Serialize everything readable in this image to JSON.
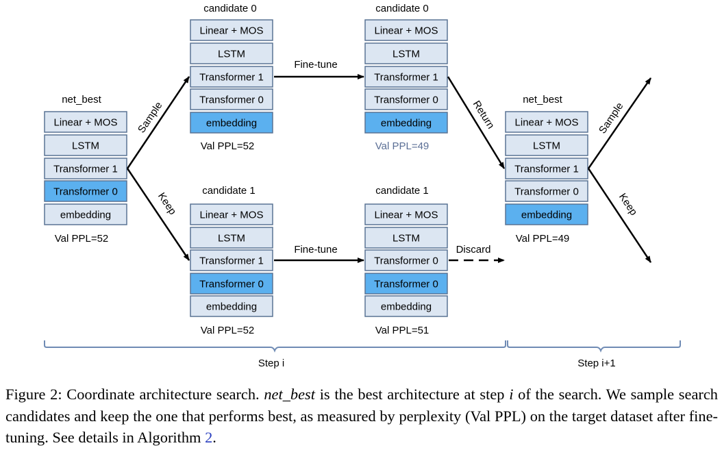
{
  "columns": [
    {
      "title": "net_best",
      "layers": [
        {
          "label": "Linear + MOS",
          "highlight": false
        },
        {
          "label": "LSTM",
          "highlight": false
        },
        {
          "label": "Transformer 1",
          "highlight": false
        },
        {
          "label": "Transformer 0",
          "highlight": true
        },
        {
          "label": "embedding",
          "highlight": false
        }
      ],
      "ppl": "Val PPL=52"
    },
    {
      "title": "candidate 0",
      "layers": [
        {
          "label": "Linear + MOS",
          "highlight": false
        },
        {
          "label": "LSTM",
          "highlight": false
        },
        {
          "label": "Transformer 1",
          "highlight": false
        },
        {
          "label": "Transformer 0",
          "highlight": false
        },
        {
          "label": "embedding",
          "highlight": true
        }
      ],
      "ppl": "Val PPL=52"
    },
    {
      "title": "candidate 1",
      "layers": [
        {
          "label": "Linear + MOS",
          "highlight": false
        },
        {
          "label": "LSTM",
          "highlight": false
        },
        {
          "label": "Transformer 1",
          "highlight": false
        },
        {
          "label": "Transformer 0",
          "highlight": true
        },
        {
          "label": "embedding",
          "highlight": false
        }
      ],
      "ppl": "Val PPL=52"
    },
    {
      "title": "candidate 0",
      "layers": [
        {
          "label": "Linear + MOS",
          "highlight": false
        },
        {
          "label": "LSTM",
          "highlight": false
        },
        {
          "label": "Transformer 1",
          "highlight": false
        },
        {
          "label": "Transformer 0",
          "highlight": false
        },
        {
          "label": "embedding",
          "highlight": true
        }
      ],
      "ppl": "Val PPL=49"
    },
    {
      "title": "candidate 1",
      "layers": [
        {
          "label": "Linear + MOS",
          "highlight": false
        },
        {
          "label": "LSTM",
          "highlight": false
        },
        {
          "label": "Transformer 0",
          "highlight": false
        },
        {
          "label": "Transformer 0",
          "highlight": true
        },
        {
          "label": "embedding",
          "highlight": false
        }
      ],
      "ppl": "Val PPL=51"
    },
    {
      "title": "net_best",
      "layers": [
        {
          "label": "Linear + MOS",
          "highlight": false
        },
        {
          "label": "LSTM",
          "highlight": false
        },
        {
          "label": "Transformer 1",
          "highlight": false
        },
        {
          "label": "Transformer 0",
          "highlight": false
        },
        {
          "label": "embedding",
          "highlight": true
        }
      ],
      "ppl": "Val PPL=49"
    }
  ],
  "edges": {
    "sample": "Sample",
    "keep": "Keep",
    "finetune": "Fine-tune",
    "return": "Return",
    "discard": "Discard"
  },
  "steps": {
    "step_i": "Step i",
    "step_i1": "Step i+1"
  },
  "colors": {
    "box_fill": "#dce6f2",
    "box_stroke": "#5a7394",
    "highlight_fill": "#5bb0ef",
    "improved_ppl": "#5a6e95",
    "bracket": "#6f8bb4"
  },
  "caption": {
    "part1": "Figure 2: Coordinate architecture search. ",
    "italic1": "net_best",
    "part2": " is the best architecture at step ",
    "italic2": "i",
    "part3": " of the search. We sample search candidates and keep the one that performs best, as measured by perplexity (Val PPL) on the target dataset after fine-tuning. See details in Algorithm ",
    "ref": "2",
    "part4": "."
  }
}
